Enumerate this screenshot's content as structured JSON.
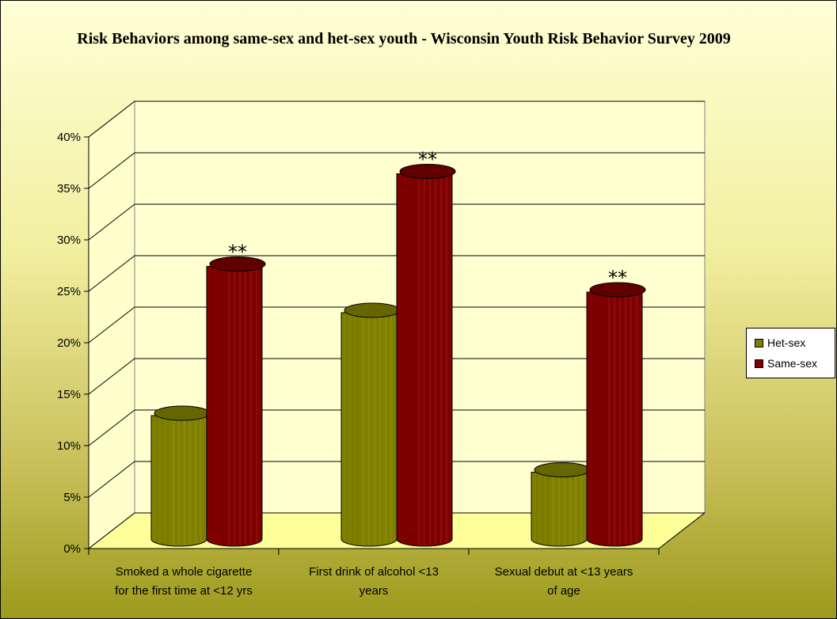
{
  "chart_data": {
    "type": "bar",
    "title": "Risk Behaviors among same-sex and het-sex youth - Wisconsin Youth Risk Behavior Survey 2009",
    "categories": [
      [
        "Smoked a whole cigarette",
        "for the first time at <12 yrs"
      ],
      [
        "First drink of alcohol <13",
        "years"
      ],
      [
        "Sexual debut at <13 years",
        "of age"
      ]
    ],
    "series": [
      {
        "name": "Het-sex",
        "values": [
          12,
          22,
          6.5
        ],
        "color": "#808000"
      },
      {
        "name": "Same-sex",
        "values": [
          26.5,
          35.5,
          24
        ],
        "color": "#800000"
      }
    ],
    "significance": [
      "**",
      "**",
      "**"
    ],
    "ylim": [
      0,
      40
    ],
    "yticks": [
      "0%",
      "5%",
      "10%",
      "15%",
      "20%",
      "25%",
      "30%",
      "35%",
      "40%"
    ],
    "grid": true,
    "legend_position": "right",
    "style": "3d-cylinder"
  }
}
